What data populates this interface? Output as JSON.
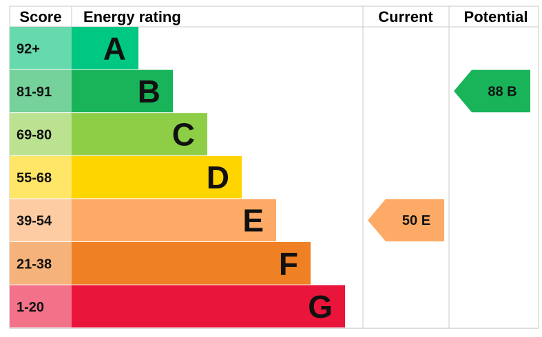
{
  "headers": {
    "score": "Score",
    "rating": "Energy rating",
    "current": "Current",
    "potential": "Potential"
  },
  "chart_data": {
    "type": "bar",
    "bands": [
      {
        "letter": "A",
        "range": "92+",
        "min": 92,
        "max": 100,
        "color": "#00c781",
        "score_bg": "#66d9ad"
      },
      {
        "letter": "B",
        "range": "81-91",
        "min": 81,
        "max": 91,
        "color": "#19b459",
        "score_bg": "#75d29b"
      },
      {
        "letter": "C",
        "range": "69-80",
        "min": 69,
        "max": 80,
        "color": "#8dce46",
        "score_bg": "#bbe290"
      },
      {
        "letter": "D",
        "range": "55-68",
        "min": 55,
        "max": 68,
        "color": "#ffd500",
        "score_bg": "#ffe666"
      },
      {
        "letter": "E",
        "range": "39-54",
        "min": 39,
        "max": 54,
        "color": "#fcaa65",
        "score_bg": "#fdcca3"
      },
      {
        "letter": "F",
        "range": "21-38",
        "min": 21,
        "max": 38,
        "color": "#ef8023",
        "score_bg": "#f5b37b"
      },
      {
        "letter": "G",
        "range": "1-20",
        "min": 1,
        "max": 20,
        "color": "#e9153b",
        "score_bg": "#f27389"
      }
    ],
    "current": {
      "score": 50,
      "letter": "E",
      "label": "50  E",
      "color": "#fcaa65"
    },
    "potential": {
      "score": 88,
      "letter": "B",
      "label": "88  B",
      "color": "#19b459"
    }
  },
  "colors": {
    "grid": "#c8c8c8",
    "text": "#111111"
  }
}
